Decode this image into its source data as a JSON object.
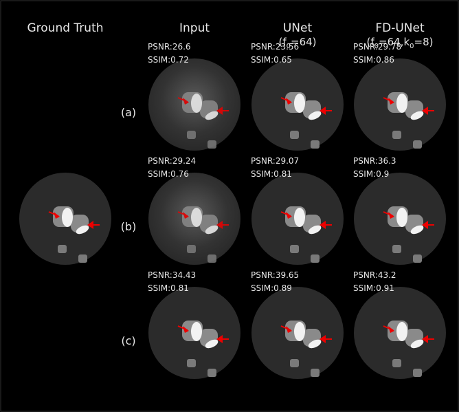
{
  "columns": [
    {
      "title": "Ground Truth"
    },
    {
      "title": "Input"
    },
    {
      "title": "UNet",
      "subtitle": [
        {
          "text": "(f"
        },
        {
          "text": "0",
          "sub": true
        },
        {
          "text": "=64)"
        }
      ]
    },
    {
      "title": "FD-UNet",
      "subtitle": [
        {
          "text": "(f"
        },
        {
          "text": "0",
          "sub": true
        },
        {
          "text": "=64,k"
        },
        {
          "text": "0",
          "sub": true
        },
        {
          "text": "=8)"
        }
      ]
    }
  ],
  "rows": [
    {
      "label": "(a)",
      "metrics": [
        [
          "PSNR:26.6",
          "SSIM:0.72"
        ],
        [
          "PSNR:23.56",
          "SSIM:0.65"
        ],
        [
          "PSNR:29.78",
          "SSIM:0.86"
        ]
      ]
    },
    {
      "label": "(b)",
      "metrics": [
        [
          "PSNR:29.24",
          "SSIM:0.76"
        ],
        [
          "PSNR:29.07",
          "SSIM:0.81"
        ],
        [
          "PSNR:36.3",
          "SSIM:0.9"
        ]
      ]
    },
    {
      "label": "(c)",
      "metrics": [
        [
          "PSNR:34.43",
          "SSIM:0.81"
        ],
        [
          "PSNR:39.65",
          "SSIM:0.89"
        ],
        [
          "PSNR:43.2",
          "SSIM:0.91"
        ]
      ]
    }
  ]
}
